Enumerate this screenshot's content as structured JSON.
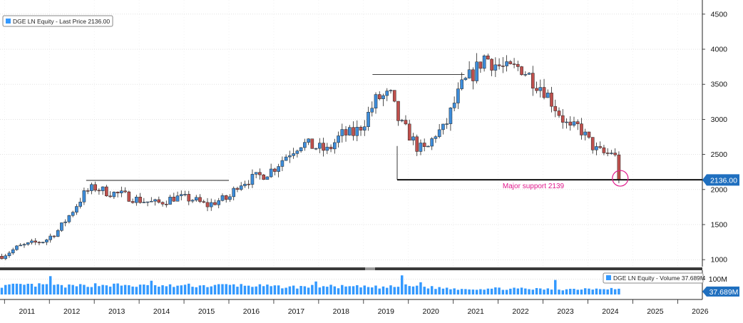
{
  "chart_data": {
    "type": "candlestick",
    "legend_price": "DGE LN Equity - Last Price 2136.00",
    "legend_volume": "DGE LN Equity - Volume 37.689M",
    "last_price_label": "2136.00",
    "last_volume_label": "37.689M",
    "volume_axis_label": "100M",
    "annotation": "Major support 2139",
    "y_ticks": [
      1000,
      1500,
      2000,
      2500,
      3000,
      3500,
      4000,
      4500
    ],
    "ylim": [
      900,
      4600
    ],
    "x_years": [
      "2011",
      "2012",
      "2013",
      "2014",
      "2015",
      "2016",
      "2017",
      "2018",
      "2019",
      "2020",
      "2021",
      "2022",
      "2023",
      "2024",
      "2025",
      "2026"
    ],
    "xlim": [
      2010.9,
      2026.55
    ],
    "support_level": 2139,
    "support_start": 2019.75,
    "support_end": 2026.55,
    "resistance_lines": [
      {
        "x0": 2012.82,
        "x1": 2016.0,
        "y": 2130
      },
      {
        "x0": 2019.2,
        "x1": 2021.25,
        "y": 3640
      }
    ],
    "support_drop_line": {
      "x": 2019.75,
      "y_top": 2620,
      "y_bottom": 2139
    },
    "highlight_circle": {
      "x": 2024.72,
      "y": 2160
    },
    "colors": {
      "up": "#3d8ddb",
      "down": "#c0504d",
      "volume": "#3399ff",
      "annotation": "#e0198c",
      "last_price_bg": "#1f6fbf",
      "legend_square": "#3399ff"
    },
    "price_anchors": [
      [
        2010.95,
        1050
      ],
      [
        2011.3,
        1180
      ],
      [
        2011.6,
        1230
      ],
      [
        2011.9,
        1270
      ],
      [
        2012.2,
        1420
      ],
      [
        2012.5,
        1680
      ],
      [
        2012.8,
        1960
      ],
      [
        2013.0,
        2030
      ],
      [
        2013.3,
        1960
      ],
      [
        2013.6,
        1930
      ],
      [
        2014.0,
        1850
      ],
      [
        2014.4,
        1800
      ],
      [
        2014.8,
        1890
      ],
      [
        2015.2,
        1860
      ],
      [
        2015.5,
        1770
      ],
      [
        2015.8,
        1850
      ],
      [
        2016.0,
        1870
      ],
      [
        2016.2,
        2080
      ],
      [
        2016.5,
        2150
      ],
      [
        2016.8,
        2220
      ],
      [
        2017.0,
        2300
      ],
      [
        2017.3,
        2500
      ],
      [
        2017.6,
        2660
      ],
      [
        2017.9,
        2610
      ],
      [
        2018.2,
        2550
      ],
      [
        2018.5,
        2780
      ],
      [
        2018.8,
        2800
      ],
      [
        2019.0,
        2950
      ],
      [
        2019.3,
        3300
      ],
      [
        2019.6,
        3340
      ],
      [
        2019.8,
        2950
      ],
      [
        2020.0,
        2800
      ],
      [
        2020.2,
        2600
      ],
      [
        2020.4,
        2550
      ],
      [
        2020.6,
        2800
      ],
      [
        2020.8,
        2860
      ],
      [
        2021.0,
        3200
      ],
      [
        2021.2,
        3480
      ],
      [
        2021.5,
        3700
      ],
      [
        2021.7,
        3900
      ],
      [
        2021.9,
        3800
      ],
      [
        2022.2,
        3700
      ],
      [
        2022.5,
        3750
      ],
      [
        2022.8,
        3550
      ],
      [
        2023.0,
        3450
      ],
      [
        2023.3,
        3150
      ],
      [
        2023.6,
        2850
      ],
      [
        2023.8,
        2900
      ],
      [
        2024.0,
        2700
      ],
      [
        2024.2,
        2550
      ],
      [
        2024.4,
        2500
      ],
      [
        2024.55,
        2550
      ],
      [
        2024.7,
        2310
      ],
      [
        2024.75,
        2136
      ]
    ],
    "volume_ylim": [
      0,
      140
    ],
    "volume_anchors": [
      [
        2010.95,
        55
      ],
      [
        2011.5,
        60
      ],
      [
        2012.0,
        58
      ],
      [
        2012.5,
        52
      ],
      [
        2013.0,
        62
      ],
      [
        2013.5,
        60
      ],
      [
        2014.0,
        55
      ],
      [
        2014.5,
        52
      ],
      [
        2015.0,
        58
      ],
      [
        2015.5,
        55
      ],
      [
        2016.0,
        60
      ],
      [
        2016.5,
        57
      ],
      [
        2017.0,
        50
      ],
      [
        2017.5,
        48
      ],
      [
        2018.0,
        52
      ],
      [
        2018.5,
        50
      ],
      [
        2019.0,
        48
      ],
      [
        2019.5,
        46
      ],
      [
        2020.0,
        55
      ],
      [
        2020.5,
        45
      ],
      [
        2021.0,
        38
      ],
      [
        2021.5,
        36
      ],
      [
        2022.0,
        38
      ],
      [
        2022.5,
        36
      ],
      [
        2023.0,
        34
      ],
      [
        2023.5,
        33
      ],
      [
        2024.0,
        38
      ],
      [
        2024.5,
        40
      ],
      [
        2024.75,
        30
      ]
    ],
    "volume_spikes": [
      [
        2012.05,
        120
      ],
      [
        2019.85,
        125
      ],
      [
        2014.3,
        90
      ],
      [
        2017.95,
        85
      ],
      [
        2023.3,
        95
      ],
      [
        2020.25,
        80
      ]
    ]
  }
}
